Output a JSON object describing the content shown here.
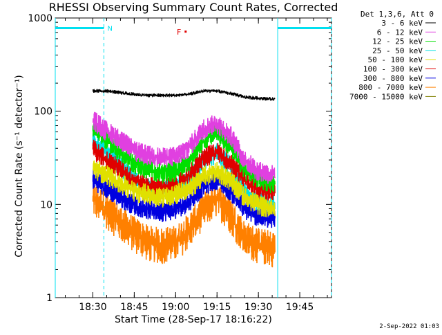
{
  "chart_data": {
    "type": "line",
    "title": "RHESSI Observing Summary Count Rates, Corrected",
    "xlabel": "Start Time (28-Sep-17 18:16:22)",
    "ylabel": "Corrected Count Rate (s⁻¹ detector⁻¹)",
    "y_scale": "log",
    "ylim": [
      1,
      1000
    ],
    "y_ticks": [
      {
        "value": 1,
        "label": "1"
      },
      {
        "value": 10,
        "label": "10"
      },
      {
        "value": 100,
        "label": "100"
      },
      {
        "value": 1000,
        "label": "1000"
      }
    ],
    "xlim": [
      "18:16:22",
      "19:56:30"
    ],
    "x_ticks": [
      {
        "t": "18:30",
        "label": "18:30"
      },
      {
        "t": "18:45",
        "label": "18:45"
      },
      {
        "t": "19:00",
        "label": "19:00"
      },
      {
        "t": "19:15",
        "label": "19:15"
      },
      {
        "t": "19:30",
        "label": "19:30"
      },
      {
        "t": "19:45",
        "label": "19:45"
      }
    ],
    "legend": {
      "placement": "right",
      "header": "Det 1,3,6, Att 0"
    },
    "series": [
      {
        "name": "3 - 6 keV",
        "color": "#000000",
        "x": [
          "18:30",
          "18:35",
          "18:40",
          "18:45",
          "18:50",
          "18:55",
          "19:00",
          "19:05",
          "19:10",
          "19:15",
          "19:20",
          "19:25",
          "19:30",
          "19:35"
        ],
        "y": [
          165,
          165,
          158,
          152,
          148,
          148,
          148,
          152,
          165,
          165,
          155,
          142,
          138,
          135
        ]
      },
      {
        "name": "6 - 12 keV",
        "color": "#e040e0",
        "x": [
          "18:30",
          "18:35",
          "18:40",
          "18:45",
          "18:50",
          "18:55",
          "19:00",
          "19:05",
          "19:10",
          "19:15",
          "19:20",
          "19:25",
          "19:30",
          "19:35"
        ],
        "y": [
          82,
          62,
          50,
          38,
          34,
          32,
          33,
          42,
          65,
          75,
          55,
          30,
          23,
          21
        ]
      },
      {
        "name": "12 - 25 keV",
        "color": "#00e000",
        "x": [
          "18:30",
          "18:35",
          "18:40",
          "18:45",
          "18:50",
          "18:55",
          "19:00",
          "19:05",
          "19:10",
          "19:15",
          "19:20",
          "19:25",
          "19:30",
          "19:35"
        ],
        "y": [
          70,
          50,
          36,
          28,
          24,
          22,
          23,
          30,
          50,
          60,
          42,
          24,
          19,
          17
        ]
      },
      {
        "name": "25 - 50 keV",
        "color": "#00e0e0",
        "x": [
          "18:30",
          "18:35",
          "18:40",
          "18:45",
          "18:50",
          "18:55",
          "19:00",
          "19:05",
          "19:10",
          "19:15",
          "19:20",
          "19:25",
          "19:30",
          "19:35"
        ],
        "y": [
          52,
          36,
          26,
          18,
          15,
          14,
          15,
          19,
          30,
          36,
          26,
          14,
          11,
          10
        ]
      },
      {
        "name": "50 - 100 keV",
        "color": "#e0e000",
        "x": [
          "18:30",
          "18:35",
          "18:40",
          "18:45",
          "18:50",
          "18:55",
          "19:00",
          "19:05",
          "19:10",
          "19:15",
          "19:20",
          "19:25",
          "19:30",
          "19:35"
        ],
        "y": [
          25,
          21,
          17,
          14,
          13,
          12,
          13,
          15,
          20,
          23,
          18,
          12,
          10,
          9
        ]
      },
      {
        "name": "100 - 300 keV",
        "color": "#e00000",
        "x": [
          "18:30",
          "18:35",
          "18:40",
          "18:45",
          "18:50",
          "18:55",
          "19:00",
          "19:05",
          "19:10",
          "19:15",
          "19:20",
          "19:25",
          "19:30",
          "19:35"
        ],
        "y": [
          40,
          30,
          24,
          18,
          16,
          15,
          16,
          21,
          32,
          37,
          28,
          19,
          15,
          14
        ]
      },
      {
        "name": "300 - 800 keV",
        "color": "#0000e0",
        "x": [
          "18:30",
          "18:35",
          "18:40",
          "18:45",
          "18:50",
          "18:55",
          "19:00",
          "19:05",
          "19:10",
          "19:15",
          "19:20",
          "19:25",
          "19:30",
          "19:35"
        ],
        "y": [
          19,
          15,
          12,
          10,
          9,
          8.5,
          9,
          11,
          16,
          19,
          14,
          9,
          7.5,
          7
        ]
      },
      {
        "name": "800 - 7000 keV",
        "color": "#ff8000",
        "x": [
          "18:30",
          "18:35",
          "18:40",
          "18:45",
          "18:50",
          "18:55",
          "19:00",
          "19:05",
          "19:10",
          "19:15",
          "19:20",
          "19:25",
          "19:30",
          "19:35"
        ],
        "y": [
          12,
          9,
          6.5,
          5,
          4,
          3.8,
          4,
          5.5,
          9,
          12,
          8,
          4.5,
          3.8,
          3.5
        ]
      },
      {
        "name": "7000 - 15000 keV",
        "color": "#808000",
        "x": [],
        "y": []
      }
    ],
    "annotations": [
      {
        "kind": "segment",
        "label": "N",
        "color": "#00e0f0",
        "from": "18:16:22",
        "to": "18:34:00"
      },
      {
        "kind": "segment",
        "label": "",
        "color": "#00e0f0",
        "from": "19:37:00",
        "to": "19:56:30"
      },
      {
        "kind": "flag",
        "label": "F",
        "color": "#e00000",
        "t": "19:02:30"
      }
    ]
  },
  "footer": {
    "timestamp": "2-Sep-2022 01:03"
  }
}
